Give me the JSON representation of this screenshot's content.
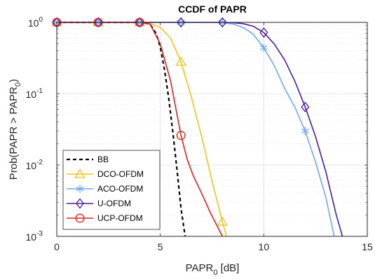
{
  "chart_data": {
    "type": "line",
    "title": "CCDF of PAPR",
    "xlabel": {
      "main": "PAPR",
      "sub": "0",
      "unit": " [dB]"
    },
    "ylabel": {
      "prefix": "Prob(PAPR > PAPR",
      "sub": "0",
      "suffix": ")"
    },
    "xlim": [
      0,
      15
    ],
    "ylim": [
      0.001,
      1
    ],
    "yscale": "log",
    "grid": true,
    "legend_position": "bottom-left",
    "xticks": [
      "0",
      "5",
      "10",
      "15"
    ],
    "yticks": [
      {
        "base": "10",
        "exp": "0",
        "value": 1
      },
      {
        "base": "10",
        "exp": "-1",
        "value": 0.1
      },
      {
        "base": "10",
        "exp": "-2",
        "value": 0.01
      },
      {
        "base": "10",
        "exp": "-3",
        "value": 0.001
      }
    ],
    "series": [
      {
        "name": "BB",
        "color": "#000000",
        "dash": "5,4",
        "marker": "none",
        "x": [
          0,
          4.0,
          4.5,
          4.8,
          5.0,
          5.2,
          5.4,
          5.6,
          5.8,
          6.0,
          6.2
        ],
        "y": [
          1,
          1,
          0.95,
          0.7,
          0.45,
          0.22,
          0.09,
          0.03,
          0.009,
          0.0025,
          0.001
        ],
        "markers_x": [],
        "markers_y": []
      },
      {
        "name": "DCO-OFDM",
        "color": "#F4C21A",
        "dash": "",
        "marker": "triangle",
        "x": [
          0,
          4.0,
          4.5,
          5.0,
          5.5,
          6.0,
          6.5,
          7.0,
          7.5,
          8.0,
          8.2
        ],
        "y": [
          1,
          1,
          0.97,
          0.85,
          0.6,
          0.28,
          0.09,
          0.025,
          0.006,
          0.0016,
          0.001
        ],
        "markers_x": [
          0,
          2,
          4,
          6,
          8
        ],
        "markers_y": [
          1,
          1,
          1,
          0.28,
          0.0016
        ]
      },
      {
        "name": "ACO-OFDM",
        "color": "#6FA8F5",
        "dash": "",
        "marker": "asterisk",
        "x": [
          0,
          7.5,
          8.0,
          8.5,
          9.0,
          9.5,
          10.0,
          10.5,
          11.0,
          11.5,
          12.0,
          12.5,
          13.0,
          13.4
        ],
        "y": [
          1,
          1,
          0.99,
          0.95,
          0.85,
          0.68,
          0.44,
          0.25,
          0.12,
          0.065,
          0.03,
          0.011,
          0.0035,
          0.001
        ],
        "markers_x": [
          0,
          2,
          4,
          6,
          8,
          10,
          12
        ],
        "markers_y": [
          1,
          1,
          1,
          1,
          1,
          0.44,
          0.03
        ]
      },
      {
        "name": "U-OFDM",
        "color": "#4B1BA1",
        "dash": "",
        "marker": "diamond",
        "x": [
          0,
          8.0,
          8.5,
          9.0,
          9.5,
          10.0,
          10.5,
          11.0,
          11.5,
          12.0,
          12.5,
          13.0,
          13.5,
          13.8
        ],
        "y": [
          1,
          1,
          0.99,
          0.96,
          0.88,
          0.72,
          0.5,
          0.3,
          0.15,
          0.065,
          0.025,
          0.008,
          0.002,
          0.001
        ],
        "markers_x": [
          0,
          2,
          4,
          6,
          8,
          10,
          12
        ],
        "markers_y": [
          1,
          1,
          1,
          1,
          1,
          0.72,
          0.065
        ]
      },
      {
        "name": "UCP-OFDM",
        "color": "#E8201A",
        "dash": "",
        "marker": "circle",
        "x": [
          0,
          4.0,
          4.5,
          5.0,
          5.5,
          6.0,
          6.3,
          6.6,
          7.0,
          7.4,
          7.8,
          8.0
        ],
        "y": [
          1,
          1,
          0.95,
          0.5,
          0.15,
          0.026,
          0.012,
          0.007,
          0.004,
          0.0022,
          0.0013,
          0.001
        ],
        "markers_x": [
          0,
          2,
          4,
          6
        ],
        "markers_y": [
          1,
          1,
          1,
          0.026
        ]
      }
    ]
  }
}
